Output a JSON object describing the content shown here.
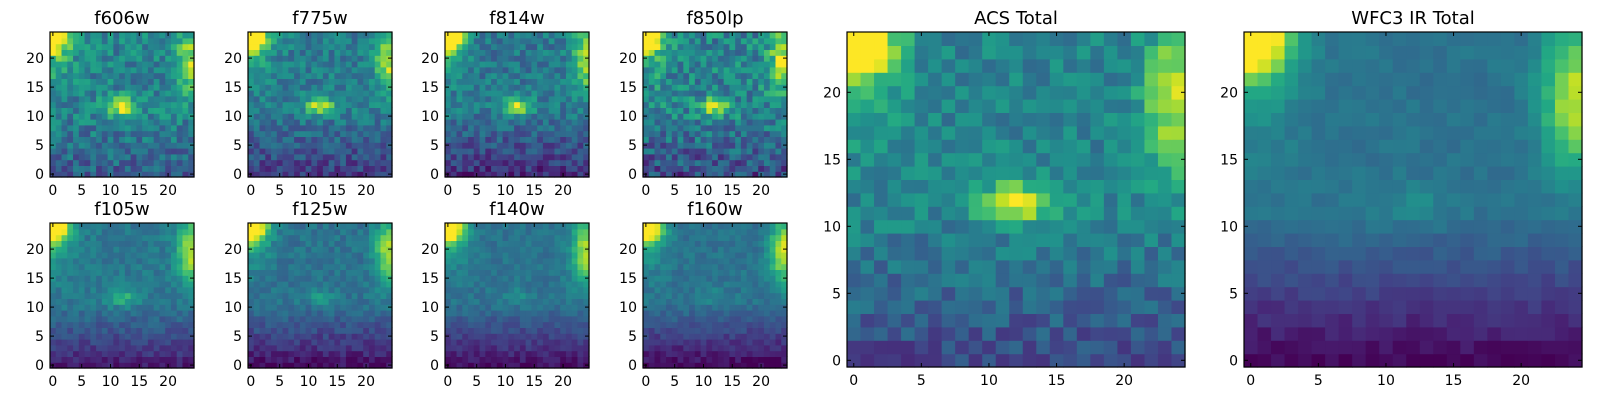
{
  "chart_data": [
    {
      "type": "heatmap",
      "title": "f606w",
      "xticks": [
        "0",
        "5",
        "10",
        "15",
        "20"
      ],
      "yticks": [
        "0",
        "5",
        "10",
        "15",
        "20"
      ],
      "grid_size": 25,
      "xlim": [
        0,
        24
      ],
      "ylim": [
        0,
        24
      ],
      "colormap": "viridis",
      "corner_left": 1.0,
      "corner_right": 0.75,
      "blob": 0.55,
      "bottom_dark": 0.35,
      "base": 0.45,
      "noise": 0.3,
      "seed": 11
    },
    {
      "type": "heatmap",
      "title": "f775w",
      "xticks": [
        "0",
        "5",
        "10",
        "15",
        "20"
      ],
      "yticks": [
        "0",
        "5",
        "10",
        "15",
        "20"
      ],
      "grid_size": 25,
      "xlim": [
        0,
        24
      ],
      "ylim": [
        0,
        24
      ],
      "colormap": "viridis",
      "corner_left": 1.0,
      "corner_right": 0.85,
      "blob": 0.5,
      "bottom_dark": 0.55,
      "base": 0.42,
      "noise": 0.25,
      "seed": 23
    },
    {
      "type": "heatmap",
      "title": "f814w",
      "xticks": [
        "0",
        "5",
        "10",
        "15",
        "20"
      ],
      "yticks": [
        "0",
        "5",
        "10",
        "15",
        "20"
      ],
      "grid_size": 25,
      "xlim": [
        0,
        24
      ],
      "ylim": [
        0,
        24
      ],
      "colormap": "viridis",
      "corner_left": 1.0,
      "corner_right": 0.9,
      "blob": 0.5,
      "bottom_dark": 0.6,
      "base": 0.4,
      "noise": 0.25,
      "seed": 37
    },
    {
      "type": "heatmap",
      "title": "f850lp",
      "xticks": [
        "0",
        "5",
        "10",
        "15",
        "20"
      ],
      "yticks": [
        "0",
        "5",
        "10",
        "15",
        "20"
      ],
      "grid_size": 25,
      "xlim": [
        0,
        24
      ],
      "ylim": [
        0,
        24
      ],
      "colormap": "viridis",
      "corner_left": 1.0,
      "corner_right": 0.9,
      "blob": 0.45,
      "bottom_dark": 0.5,
      "base": 0.45,
      "noise": 0.35,
      "seed": 41
    },
    {
      "type": "heatmap",
      "title": "f105w",
      "xticks": [
        "0",
        "5",
        "10",
        "15",
        "20"
      ],
      "yticks": [
        "0",
        "5",
        "10",
        "15",
        "20"
      ],
      "grid_size": 25,
      "xlim": [
        0,
        24
      ],
      "ylim": [
        0,
        24
      ],
      "colormap": "viridis",
      "corner_left": 1.0,
      "corner_right": 0.95,
      "blob": 0.25,
      "bottom_dark": 0.7,
      "base": 0.4,
      "noise": 0.14,
      "seed": 53
    },
    {
      "type": "heatmap",
      "title": "f125w",
      "xticks": [
        "0",
        "5",
        "10",
        "15",
        "20"
      ],
      "yticks": [
        "0",
        "5",
        "10",
        "15",
        "20"
      ],
      "grid_size": 25,
      "xlim": [
        0,
        24
      ],
      "ylim": [
        0,
        24
      ],
      "colormap": "viridis",
      "corner_left": 1.0,
      "corner_right": 0.95,
      "blob": 0.15,
      "bottom_dark": 0.75,
      "base": 0.38,
      "noise": 0.14,
      "seed": 67
    },
    {
      "type": "heatmap",
      "title": "f140w",
      "xticks": [
        "0",
        "5",
        "10",
        "15",
        "20"
      ],
      "yticks": [
        "0",
        "5",
        "10",
        "15",
        "20"
      ],
      "grid_size": 25,
      "xlim": [
        0,
        24
      ],
      "ylim": [
        0,
        24
      ],
      "colormap": "viridis",
      "corner_left": 1.0,
      "corner_right": 0.95,
      "blob": 0.1,
      "bottom_dark": 0.75,
      "base": 0.38,
      "noise": 0.12,
      "seed": 79
    },
    {
      "type": "heatmap",
      "title": "f160w",
      "xticks": [
        "0",
        "5",
        "10",
        "15",
        "20"
      ],
      "yticks": [
        "0",
        "5",
        "10",
        "15",
        "20"
      ],
      "grid_size": 25,
      "xlim": [
        0,
        24
      ],
      "ylim": [
        0,
        24
      ],
      "colormap": "viridis",
      "corner_left": 1.0,
      "corner_right": 1.0,
      "blob": 0.1,
      "bottom_dark": 0.8,
      "base": 0.38,
      "noise": 0.12,
      "seed": 83
    },
    {
      "type": "heatmap",
      "title": "ACS Total",
      "xticks": [
        "0",
        "5",
        "10",
        "15",
        "20"
      ],
      "yticks": [
        "0",
        "5",
        "10",
        "15",
        "20"
      ],
      "grid_size": 25,
      "xlim": [
        0,
        24
      ],
      "ylim": [
        0,
        24
      ],
      "colormap": "viridis",
      "corner_left": 1.0,
      "corner_right": 0.85,
      "blob": 0.55,
      "bottom_dark": 0.5,
      "base": 0.45,
      "noise": 0.22,
      "seed": 97
    },
    {
      "type": "heatmap",
      "title": "WFC3 IR Total",
      "xticks": [
        "0",
        "5",
        "10",
        "15",
        "20"
      ],
      "yticks": [
        "0",
        "5",
        "10",
        "15",
        "20"
      ],
      "grid_size": 25,
      "xlim": [
        0,
        24
      ],
      "ylim": [
        0,
        24
      ],
      "colormap": "viridis",
      "corner_left": 1.0,
      "corner_right": 0.95,
      "blob": 0.1,
      "bottom_dark": 0.8,
      "base": 0.38,
      "noise": 0.08,
      "seed": 101
    }
  ]
}
